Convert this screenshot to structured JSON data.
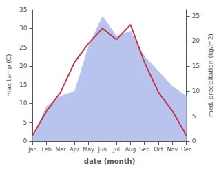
{
  "chart_data": {
    "type": "line",
    "categories": [
      "Jan",
      "Feb",
      "Mar",
      "Apr",
      "May",
      "Jun",
      "Jul",
      "Aug",
      "Sep",
      "Oct",
      "Nov",
      "Dec"
    ],
    "series": [
      {
        "type": "area",
        "axis": "y2",
        "color": "#b8c4ee",
        "values": [
          1.0,
          7.0,
          9.0,
          10.0,
          19.0,
          25.0,
          21.0,
          22.0,
          17.0,
          14.0,
          11.0,
          9.0
        ]
      },
      {
        "type": "line",
        "color": "#c0364a",
        "values": [
          1.5,
          8.0,
          13.0,
          21.0,
          26.0,
          30.0,
          27.0,
          31.0,
          21.0,
          13.0,
          8.0,
          1.5
        ]
      }
    ],
    "xlabel": "date (month)",
    "ylabel": "max temp (C)",
    "y2label": "med. precipitation (kg/m2)",
    "ylim": [
      0,
      35
    ],
    "yticks": [
      0,
      5,
      10,
      15,
      20,
      25,
      30,
      35
    ],
    "y2lim": [
      0,
      26.25
    ],
    "y2ticks": [
      0,
      5,
      10,
      15,
      20,
      25
    ],
    "grid": false
  }
}
